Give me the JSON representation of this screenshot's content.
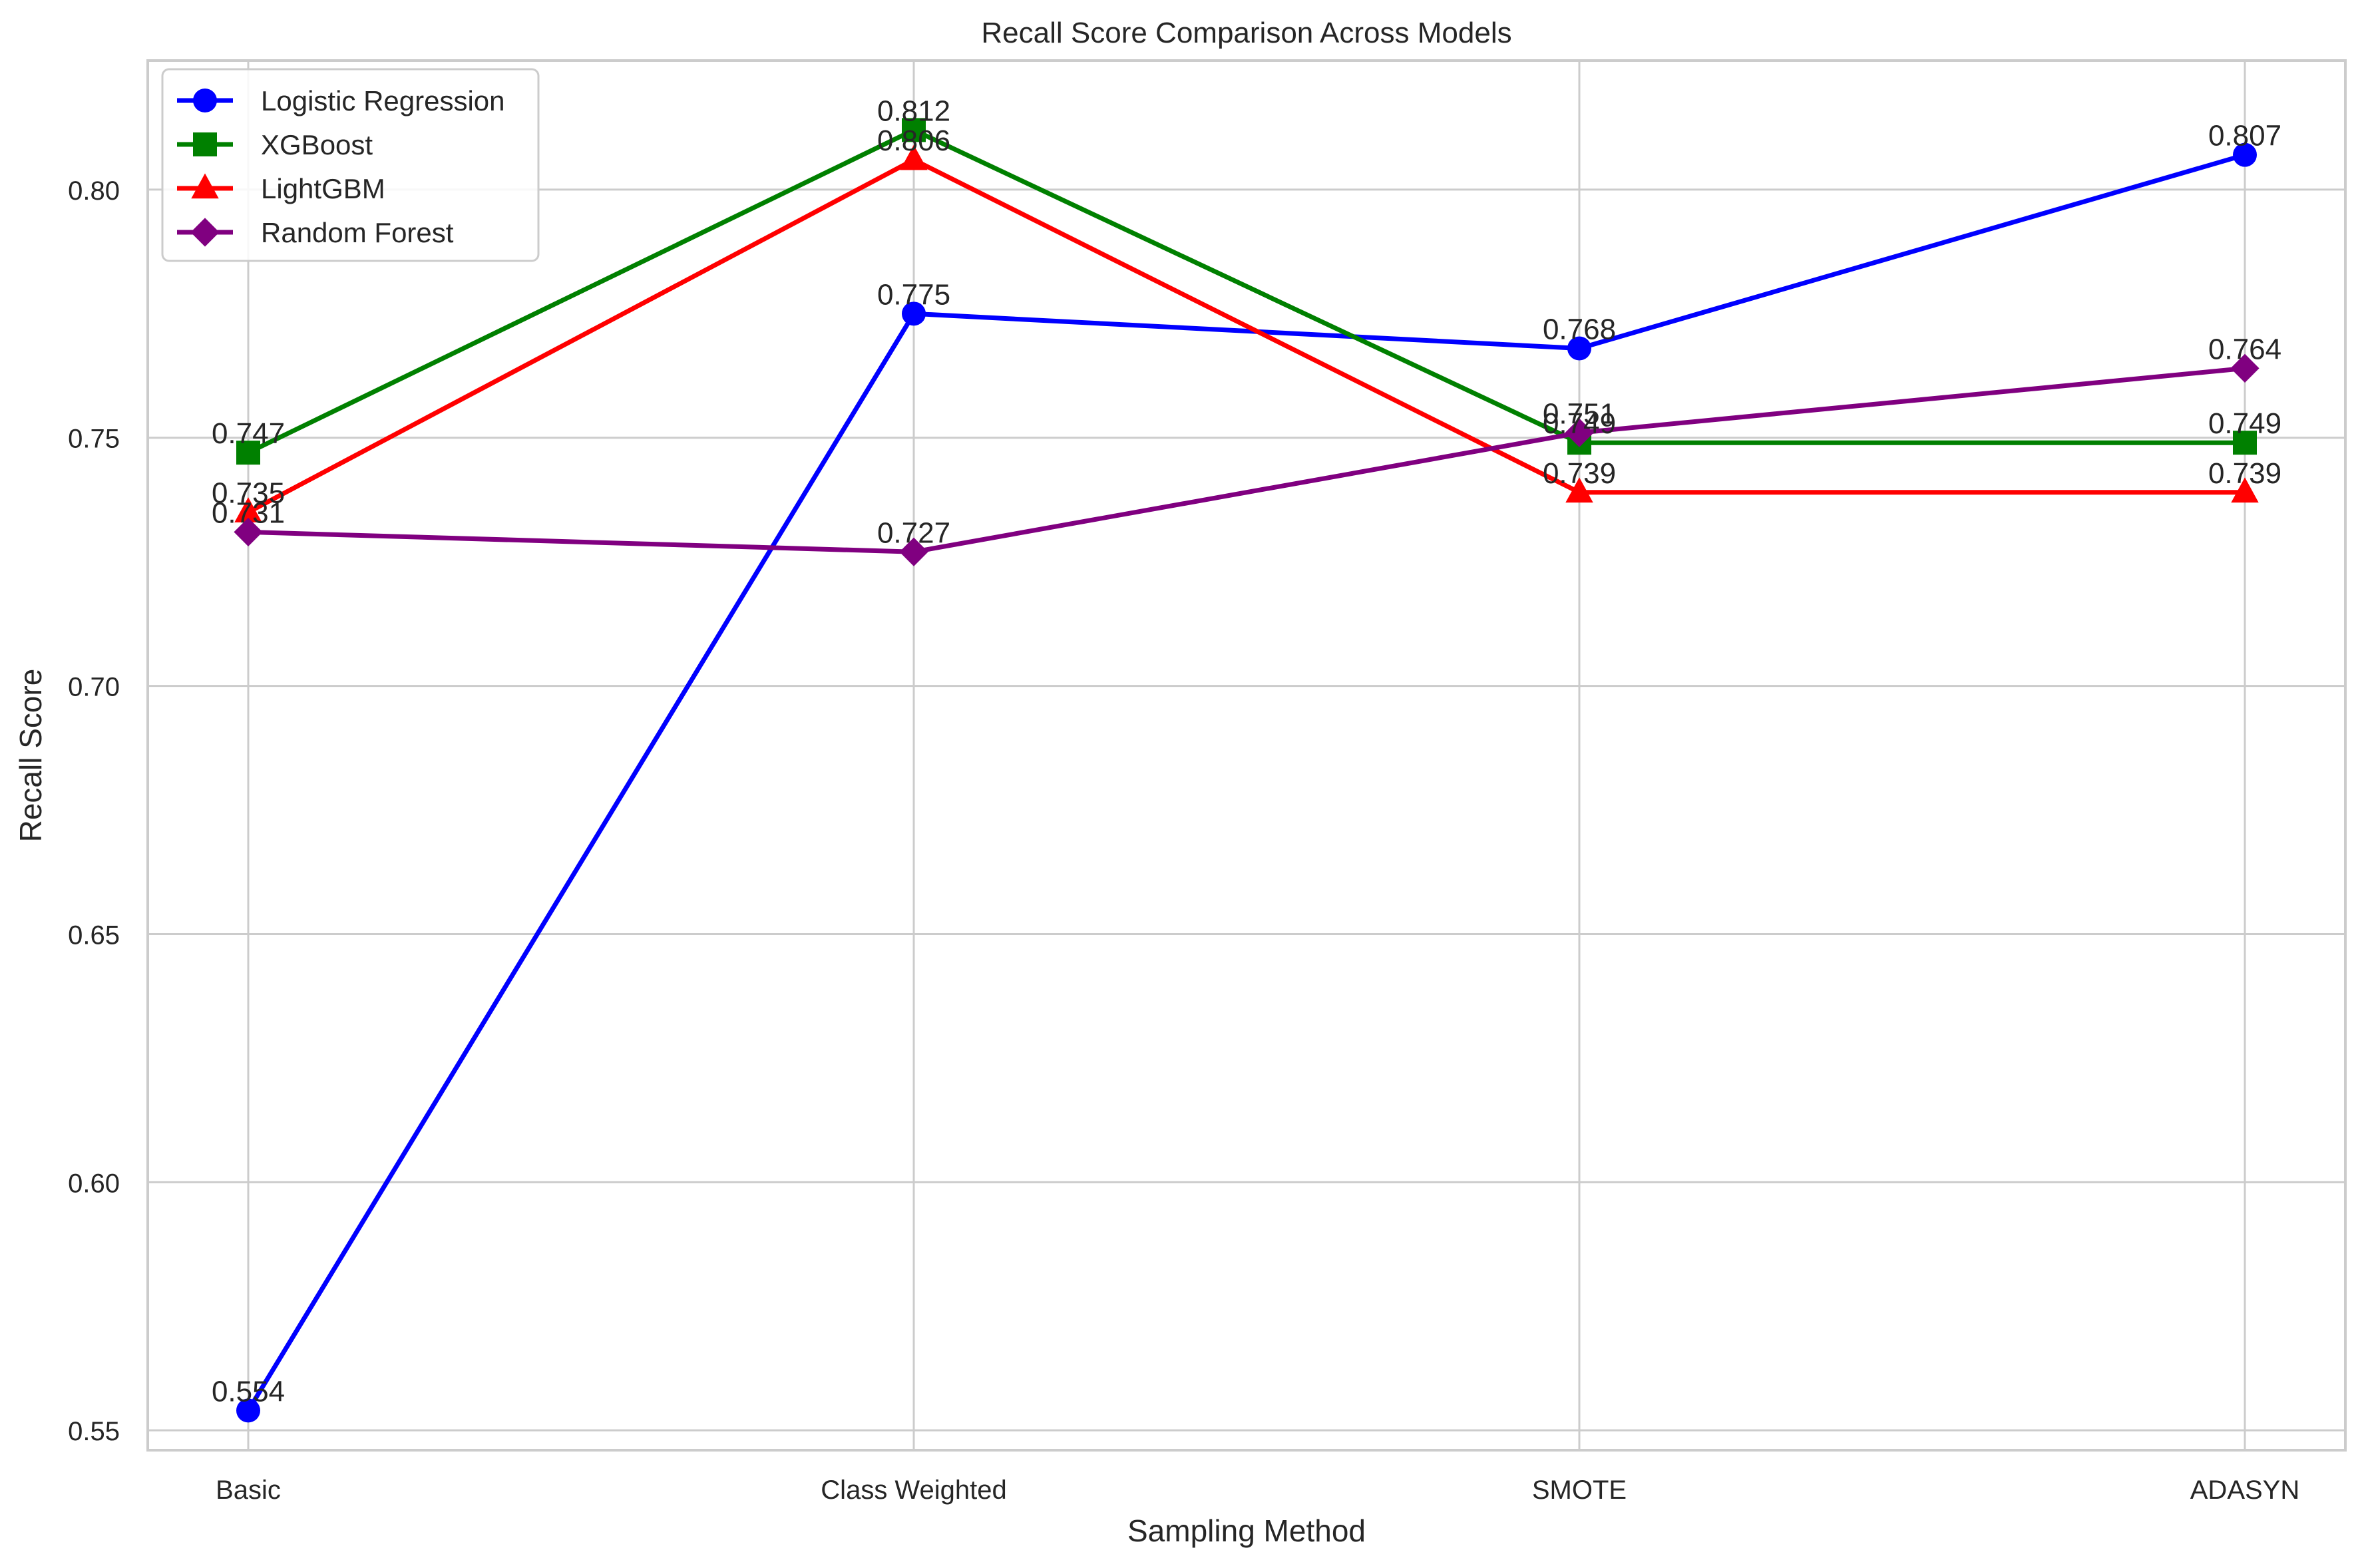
{
  "chart_data": {
    "type": "line",
    "title": "Recall Score Comparison Across Models",
    "xlabel": "Sampling Method",
    "ylabel": "Recall Score",
    "categories": [
      "Basic",
      "Class Weighted",
      "SMOTE",
      "ADASYN"
    ],
    "yticks": [
      "0.55",
      "0.60",
      "0.65",
      "0.70",
      "0.75",
      "0.80"
    ],
    "ylim": [
      0.546,
      0.826
    ],
    "grid": true,
    "legend_position": "top-left",
    "series": [
      {
        "name": "Logistic Regression",
        "color": "#0000ff",
        "marker": "circle",
        "values": [
          0.554,
          0.775,
          0.768,
          0.807
        ],
        "labels": [
          "0.554",
          "0.775",
          "0.768",
          "0.807"
        ]
      },
      {
        "name": "XGBoost",
        "color": "#008000",
        "marker": "square",
        "values": [
          0.747,
          0.812,
          0.749,
          0.749
        ],
        "labels": [
          "0.747",
          "0.812",
          "0.749",
          "0.749"
        ]
      },
      {
        "name": "LightGBM",
        "color": "#ff0000",
        "marker": "triangle",
        "values": [
          0.735,
          0.806,
          0.739,
          0.739
        ],
        "labels": [
          "0.735",
          "0.806",
          "0.739",
          "0.739"
        ]
      },
      {
        "name": "Random Forest",
        "color": "#800080",
        "marker": "diamond",
        "values": [
          0.731,
          0.727,
          0.751,
          0.764
        ],
        "labels": [
          "0.731",
          "0.727",
          "0.751",
          "0.764"
        ]
      }
    ]
  }
}
